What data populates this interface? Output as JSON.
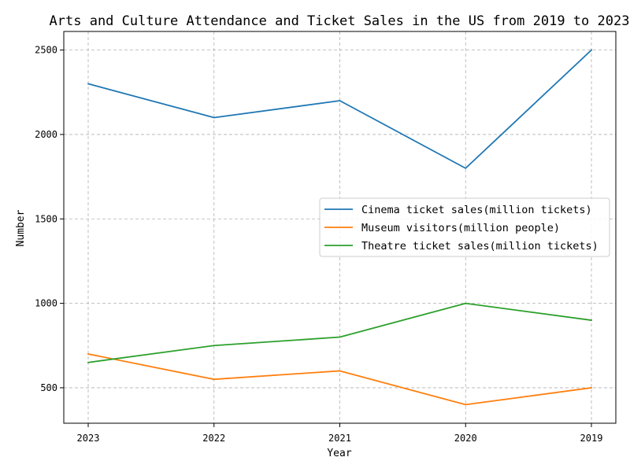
{
  "chart_data": {
    "type": "line",
    "title": "Arts and Culture Attendance and Ticket Sales in the US from 2019 to 2023",
    "xlabel": "Year",
    "ylabel": "Number",
    "categories": [
      "2023",
      "2022",
      "2021",
      "2020",
      "2019"
    ],
    "ylim": [
      290,
      2610
    ],
    "yticks": [
      500,
      1000,
      1500,
      2000,
      2500
    ],
    "grid": true,
    "legend_position": "center-right",
    "series": [
      {
        "name": "Cinema ticket sales(million tickets)",
        "values": [
          2300,
          2100,
          2200,
          1800,
          2500
        ],
        "color": "#1f77b4"
      },
      {
        "name": "Museum visitors(million people)",
        "values": [
          700,
          550,
          600,
          400,
          500
        ],
        "color": "#ff7f0e"
      },
      {
        "name": "Theatre ticket sales(million tickets)",
        "values": [
          650,
          750,
          800,
          1000,
          900
        ],
        "color": "#2ca02c"
      }
    ]
  }
}
